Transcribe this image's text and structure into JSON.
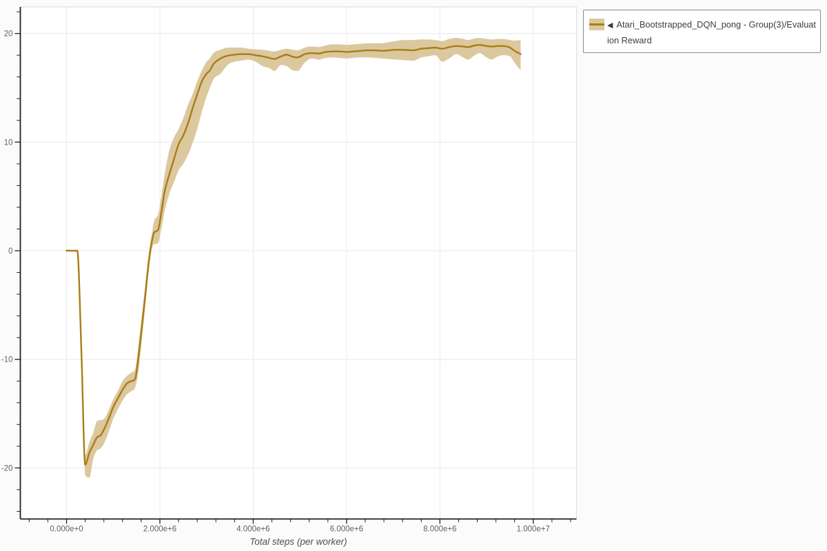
{
  "legend": {
    "icon": "◀",
    "label": "Atari_Bootstrapped_DQN_pong - Group(3)/Evaluation Reward"
  },
  "colors": {
    "background": "#fbfbfb",
    "plot_bg": "#ffffff",
    "grid": "#e8e8e8",
    "border": "#e2e2e2",
    "axis": "#1f1f1f",
    "tick_label": "#606060",
    "axis_title": "#4f4f4f",
    "legend_border": "#8a8a8a",
    "legend_text": "#3d3d3d",
    "legend_bg": "#ffffff"
  },
  "chart_data": {
    "type": "line",
    "title": "",
    "xlabel": "Total steps (per worker)",
    "ylabel": "",
    "grid": true,
    "legend_position": "top-right",
    "xlim": [
      -990000,
      10926000
    ],
    "ylim": [
      -24.7,
      22.45
    ],
    "x_ticks": {
      "major": [
        0,
        2000000,
        4000000,
        6000000,
        8000000,
        10000000
      ],
      "labels": [
        "0.000e+0",
        "2.000e+6",
        "4.000e+6",
        "6.000e+6",
        "8.000e+6",
        "1.000e+7"
      ],
      "minor_start": -800000,
      "minor_end": 10800000,
      "minor_step": 400000
    },
    "y_ticks": {
      "major": [
        -20,
        -10,
        0,
        10,
        20
      ],
      "labels": [
        "-20",
        "-10",
        "0",
        "10",
        "20"
      ],
      "minor_start": -24,
      "minor_end": 22,
      "minor_step": 2
    },
    "series": [
      {
        "name": "Atari_Bootstrapped_DQN_pong - Group(3)/Evaluation Reward",
        "color": "#a87d15",
        "band_color": "#dcc89e",
        "x": [
          0,
          230000,
          320000,
          400000,
          490000,
          570000,
          650000,
          730000,
          820000,
          910000,
          1000000,
          1100000,
          1200000,
          1300000,
          1400000,
          1470000,
          1530000,
          1600000,
          1680000,
          1760000,
          1830000,
          1880000,
          1960000,
          2030000,
          2100000,
          2200000,
          2300000,
          2400000,
          2500000,
          2600000,
          2700000,
          2800000,
          2900000,
          3000000,
          3070000,
          3150000,
          3300000,
          3450000,
          3600000,
          3750000,
          3900000,
          4050000,
          4200000,
          4350000,
          4450000,
          4600000,
          4720000,
          4850000,
          4950000,
          5100000,
          5250000,
          5400000,
          5550000,
          5700000,
          5850000,
          6000000,
          6150000,
          6300000,
          6450000,
          6600000,
          6750000,
          6900000,
          7050000,
          7200000,
          7430000,
          7600000,
          7750000,
          7900000,
          8050000,
          8200000,
          8350000,
          8500000,
          8600000,
          8750000,
          8850000,
          9000000,
          9100000,
          9250000,
          9350000,
          9500000,
          9600000,
          9730000
        ],
        "y": [
          0,
          0,
          -9.5,
          -19.7,
          -18.6,
          -17.9,
          -17.2,
          -17.0,
          -16.3,
          -15.4,
          -14.4,
          -13.6,
          -12.8,
          -12.2,
          -12.0,
          -11.8,
          -10.2,
          -7.6,
          -4.4,
          -1.1,
          0.9,
          1.7,
          1.9,
          3.5,
          5.4,
          7.0,
          8.4,
          9.8,
          10.6,
          11.7,
          13.1,
          14.4,
          15.6,
          16.3,
          16.6,
          17.2,
          17.7,
          17.95,
          18.05,
          18.1,
          18.1,
          18.0,
          17.9,
          17.75,
          17.65,
          17.9,
          18.05,
          17.85,
          17.8,
          18.1,
          18.2,
          18.15,
          18.3,
          18.35,
          18.35,
          18.3,
          18.35,
          18.4,
          18.45,
          18.45,
          18.4,
          18.45,
          18.5,
          18.5,
          18.45,
          18.6,
          18.65,
          18.7,
          18.6,
          18.75,
          18.85,
          18.8,
          18.75,
          18.9,
          18.95,
          18.85,
          18.8,
          18.85,
          18.85,
          18.7,
          18.4,
          18.1
        ],
        "y_lower": [
          0,
          0,
          -9.6,
          -20.6,
          -20.9,
          -19.2,
          -18.4,
          -18.2,
          -17.6,
          -16.6,
          -15.5,
          -14.6,
          -13.8,
          -13.2,
          -12.9,
          -12.6,
          -11.4,
          -8.8,
          -5.4,
          -2.0,
          0.2,
          0.6,
          0.7,
          2.0,
          3.6,
          5.2,
          6.3,
          7.4,
          8.0,
          8.8,
          9.9,
          11.2,
          12.8,
          14.2,
          15.0,
          15.8,
          16.3,
          17.1,
          17.4,
          17.5,
          17.6,
          17.4,
          17.0,
          16.8,
          16.55,
          17.1,
          17.0,
          16.6,
          16.55,
          17.3,
          17.7,
          17.6,
          17.75,
          17.8,
          17.75,
          17.7,
          17.75,
          17.8,
          17.8,
          17.75,
          17.7,
          17.65,
          17.6,
          17.55,
          17.5,
          17.8,
          17.9,
          18.0,
          17.4,
          17.7,
          18.1,
          17.8,
          17.6,
          18.0,
          18.2,
          17.8,
          17.6,
          17.9,
          18.0,
          17.9,
          17.3,
          16.6
        ],
        "y_upper": [
          0,
          0,
          -9.4,
          -18.8,
          -17.6,
          -16.8,
          -15.7,
          -15.6,
          -15.4,
          -14.6,
          -13.7,
          -12.9,
          -12.0,
          -11.5,
          -11.2,
          -10.9,
          -9.0,
          -6.4,
          -3.4,
          -0.3,
          1.6,
          2.8,
          3.3,
          5.0,
          7.0,
          9.2,
          10.4,
          11.2,
          12.2,
          13.4,
          14.4,
          15.6,
          16.6,
          17.4,
          17.7,
          18.2,
          18.5,
          18.7,
          18.7,
          18.7,
          18.6,
          18.55,
          18.5,
          18.4,
          18.35,
          18.5,
          18.6,
          18.5,
          18.45,
          18.7,
          18.8,
          18.75,
          18.9,
          19.0,
          19.0,
          18.95,
          19.0,
          19.05,
          19.1,
          19.1,
          19.1,
          19.2,
          19.3,
          19.4,
          19.4,
          19.45,
          19.45,
          19.4,
          19.3,
          19.5,
          19.6,
          19.5,
          19.4,
          19.55,
          19.6,
          19.5,
          19.45,
          19.5,
          19.5,
          19.4,
          19.35,
          19.4
        ]
      }
    ]
  }
}
